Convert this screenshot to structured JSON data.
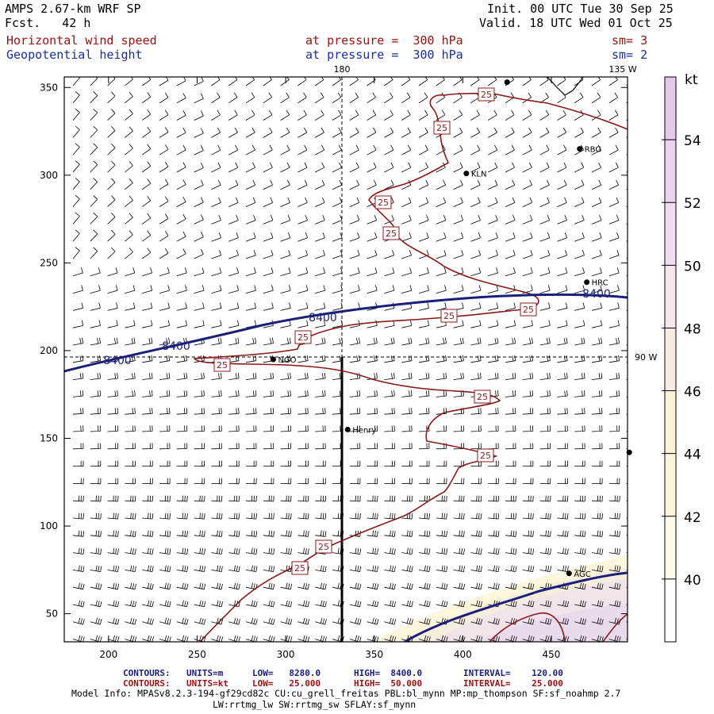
{
  "header": {
    "model": "AMPS 2.67-km WRF SP",
    "forecast": "Fcst.   42 h",
    "init": "Init. 00 UTC Tue 30 Sep 25",
    "valid": "Valid. 18 UTC Wed 01 Oct 25",
    "field1_name": "Horizontal wind speed",
    "field1_level": "at pressure =  300 hPa",
    "field1_sm": "sm= 3",
    "field2_name": "Geopotential height",
    "field2_level": "at pressure =  300 hPa",
    "field2_sm": "sm= 2"
  },
  "map": {
    "meridian_labels": {
      "top_180": "180",
      "top_135w": "135 W",
      "right_90w": "90 W"
    },
    "x_ticks": [
      "200",
      "250",
      "300",
      "350",
      "400",
      "450"
    ],
    "y_ticks": [
      "50",
      "100",
      "150",
      "200",
      "250",
      "300",
      "350"
    ],
    "contour_label_height": "8400",
    "contour_label_speed": "25",
    "stations": [
      {
        "name": "RBG",
        "x": 466,
        "y": 315
      },
      {
        "name": "KLN",
        "x": 402,
        "y": 301
      },
      {
        "name": "HRC",
        "x": 470,
        "y": 239
      },
      {
        "name": "NGO",
        "x": 293,
        "y": 195
      },
      {
        "name": "Henry",
        "x": 335,
        "y": 155
      },
      {
        "name": "AGC",
        "x": 460,
        "y": 73
      },
      {
        "name": "",
        "x": 425,
        "y": 353
      },
      {
        "name": "",
        "x": 494,
        "y": 142
      }
    ],
    "colors": {
      "height": "#1a1f7a",
      "speed": "#8a1a1a"
    }
  },
  "colorbar": {
    "unit": "kt",
    "labels": [
      "54",
      "52",
      "50",
      "48",
      "46",
      "44",
      "42",
      "40"
    ],
    "colors": [
      "#e6c8ec",
      "#ebd2ee",
      "#efdcef",
      "#f3e6ee",
      "#f6ece2",
      "#f9f1d8",
      "#fbf5dc",
      "#fdfaea",
      "#ffffff"
    ]
  },
  "footer": {
    "c1_key": "CONTOURS:",
    "c1_units": "UNITS=m",
    "c1_low": "LOW=   8280.0",
    "c1_high": "HIGH=  8400.0",
    "c1_int": "INTERVAL=    120.00",
    "c2_key": "CONTOURS:",
    "c2_units": "UNITS=kt",
    "c2_low": "LOW=   25.000",
    "c2_high": "HIGH=  50.000",
    "c2_int": "INTERVAL=    25.000",
    "model_info_1": "Model Info: MPASv8.2.3-194-gf29cd82c CU:cu_grell_freitas PBL:bl_mynn MP:mp_thompson SF:sf_noahmp 2.7",
    "model_info_2": "LW:rrtmg_lw SW:rrtmg_sw SFLAY:sf_mynn"
  }
}
